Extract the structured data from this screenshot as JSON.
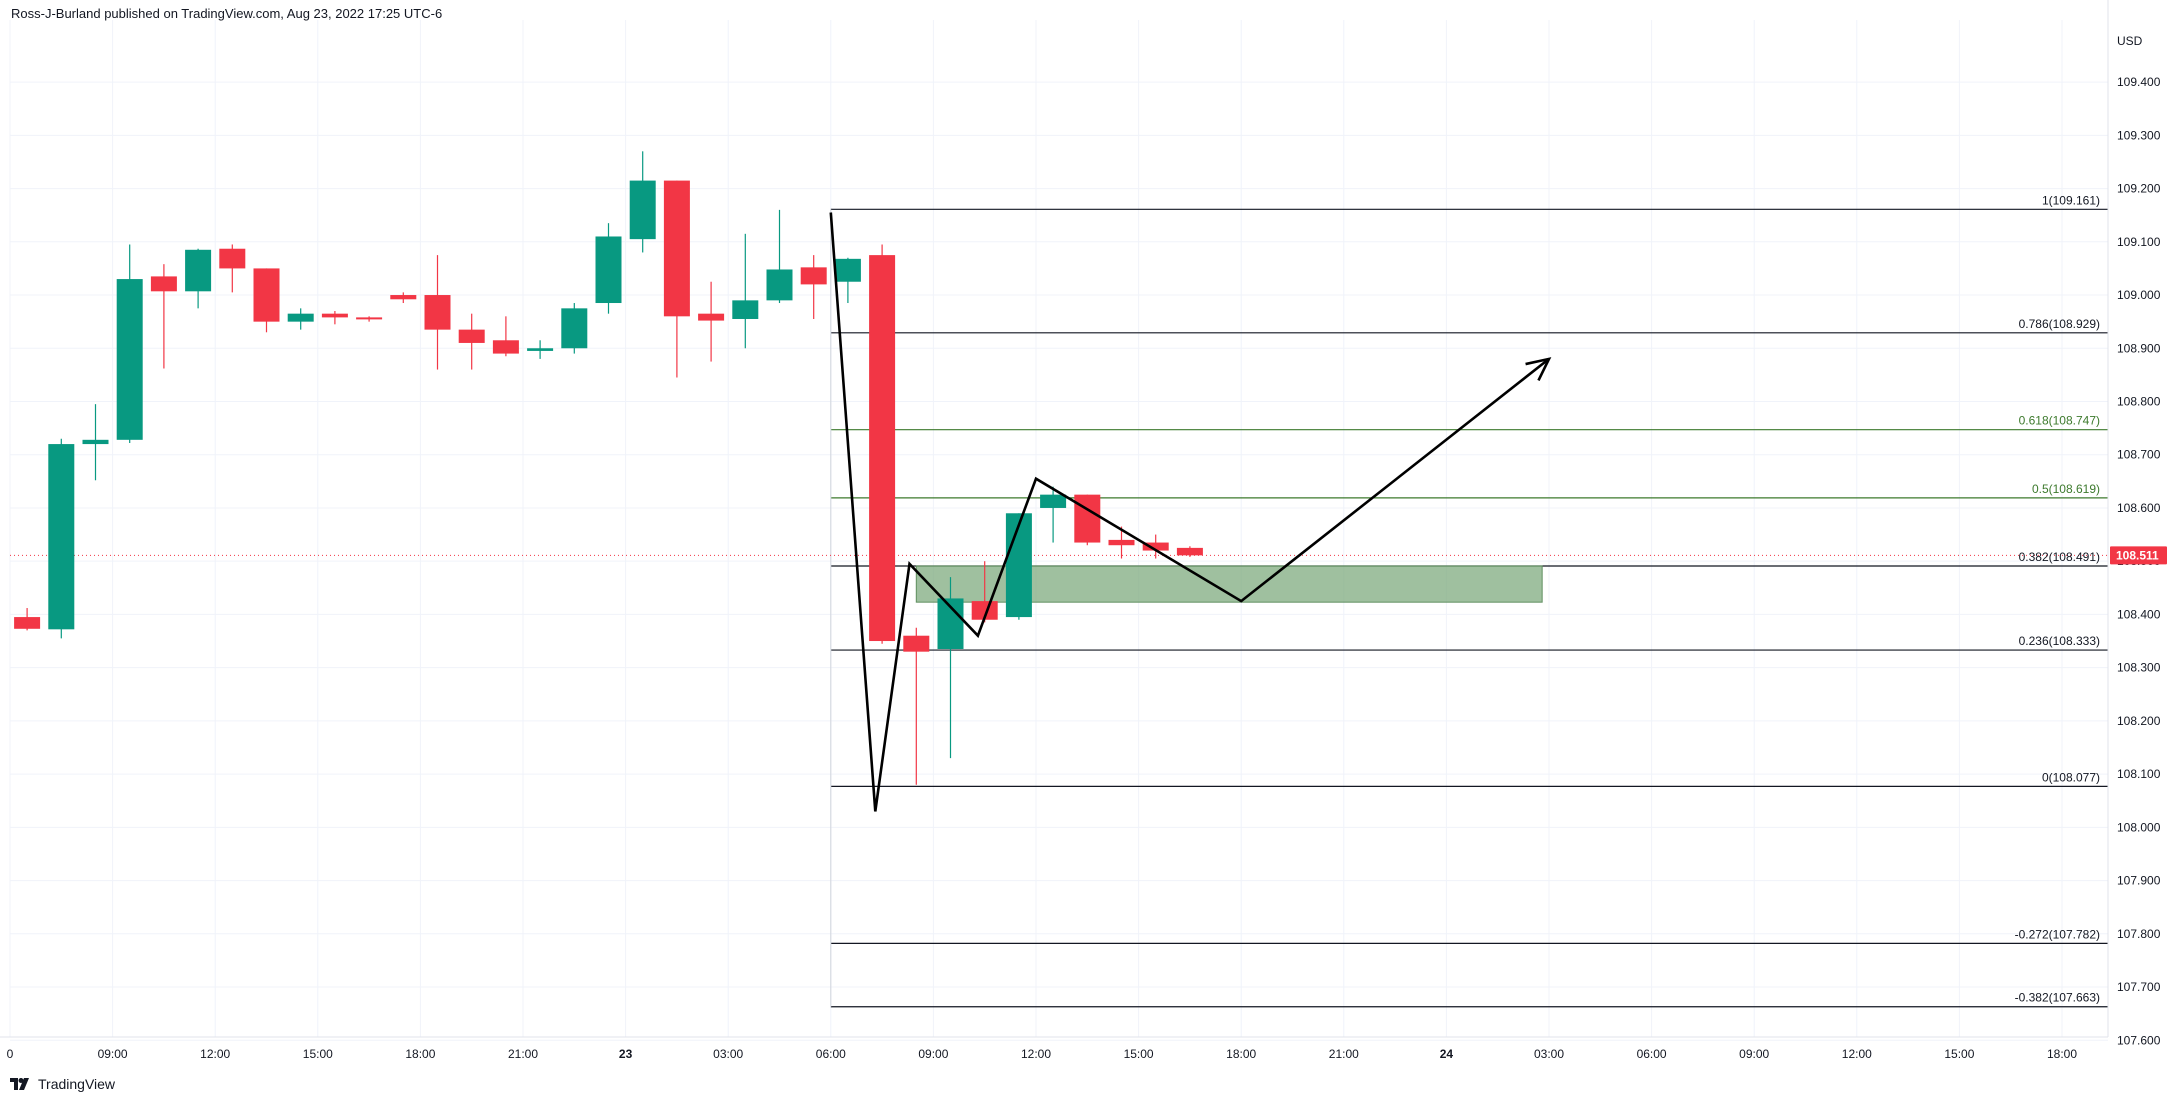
{
  "header": {
    "text": "Ross-J-Burland published on TradingView.com, Aug 23, 2022 17:25 UTC-6"
  },
  "footer": {
    "brand": "TradingView"
  },
  "colors": {
    "up": "#089981",
    "down": "#f23645",
    "grid": "#f0f3fa",
    "fib_black": "#131722",
    "fib_green": "#3d7a2d",
    "zone_fill": "#7aa77a",
    "last_price_bg": "#f23645"
  },
  "chart_data": {
    "type": "candlestick",
    "title": "",
    "y_axis_label": "USD",
    "y_ticks": [
      "109.400",
      "109.300",
      "109.200",
      "109.100",
      "109.000",
      "108.900",
      "108.800",
      "108.700",
      "108.600",
      "108.500",
      "108.400",
      "108.300",
      "108.200",
      "108.100",
      "108.000",
      "107.900",
      "107.800",
      "107.700",
      "107.600"
    ],
    "x_ticks": [
      {
        "label": "0",
        "hour": 6,
        "bold": false
      },
      {
        "label": "09:00",
        "hour": 9,
        "bold": false
      },
      {
        "label": "12:00",
        "hour": 12,
        "bold": false
      },
      {
        "label": "15:00",
        "hour": 15,
        "bold": false
      },
      {
        "label": "18:00",
        "hour": 18,
        "bold": false
      },
      {
        "label": "21:00",
        "hour": 21,
        "bold": false
      },
      {
        "label": "23",
        "hour": 24,
        "bold": true
      },
      {
        "label": "03:00",
        "hour": 27,
        "bold": false
      },
      {
        "label": "06:00",
        "hour": 30,
        "bold": false
      },
      {
        "label": "09:00",
        "hour": 33,
        "bold": false
      },
      {
        "label": "12:00",
        "hour": 36,
        "bold": false
      },
      {
        "label": "15:00",
        "hour": 39,
        "bold": false
      },
      {
        "label": "18:00",
        "hour": 42,
        "bold": false
      },
      {
        "label": "21:00",
        "hour": 45,
        "bold": false
      },
      {
        "label": "24",
        "hour": 48,
        "bold": true
      },
      {
        "label": "03:00",
        "hour": 51,
        "bold": false
      },
      {
        "label": "06:00",
        "hour": 54,
        "bold": false
      },
      {
        "label": "09:00",
        "hour": 57,
        "bold": false
      },
      {
        "label": "12:00",
        "hour": 60,
        "bold": false
      },
      {
        "label": "15:00",
        "hour": 63,
        "bold": false
      },
      {
        "label": "18:00",
        "hour": 66,
        "bold": false
      }
    ],
    "candles": [
      {
        "t": 6,
        "o": 108.395,
        "h": 108.412,
        "l": 108.37,
        "c": 108.373
      },
      {
        "t": 7,
        "o": 108.372,
        "h": 108.73,
        "l": 108.355,
        "c": 108.72
      },
      {
        "t": 8,
        "o": 108.72,
        "h": 108.795,
        "l": 108.652,
        "c": 108.728
      },
      {
        "t": 9,
        "o": 108.728,
        "h": 109.095,
        "l": 108.722,
        "c": 109.03
      },
      {
        "t": 10,
        "o": 109.035,
        "h": 109.058,
        "l": 108.862,
        "c": 109.007
      },
      {
        "t": 11,
        "o": 109.007,
        "h": 109.087,
        "l": 108.975,
        "c": 109.085
      },
      {
        "t": 12,
        "o": 109.087,
        "h": 109.095,
        "l": 109.005,
        "c": 109.05
      },
      {
        "t": 13,
        "o": 109.05,
        "h": 109.05,
        "l": 108.93,
        "c": 108.95
      },
      {
        "t": 14,
        "o": 108.95,
        "h": 108.975,
        "l": 108.935,
        "c": 108.965
      },
      {
        "t": 15,
        "o": 108.965,
        "h": 108.97,
        "l": 108.945,
        "c": 108.958
      },
      {
        "t": 16,
        "o": 108.958,
        "h": 108.96,
        "l": 108.95,
        "c": 108.957
      },
      {
        "t": 17,
        "o": 109.0,
        "h": 109.005,
        "l": 108.985,
        "c": 108.992
      },
      {
        "t": 18,
        "o": 109.0,
        "h": 109.075,
        "l": 108.86,
        "c": 108.935
      },
      {
        "t": 19,
        "o": 108.935,
        "h": 108.965,
        "l": 108.86,
        "c": 108.91
      },
      {
        "t": 20,
        "o": 108.915,
        "h": 108.96,
        "l": 108.885,
        "c": 108.89
      },
      {
        "t": 21,
        "o": 108.895,
        "h": 108.915,
        "l": 108.88,
        "c": 108.9
      },
      {
        "t": 22,
        "o": 108.9,
        "h": 108.985,
        "l": 108.89,
        "c": 108.975
      },
      {
        "t": 23,
        "o": 108.985,
        "h": 109.135,
        "l": 108.965,
        "c": 109.11
      },
      {
        "t": 24,
        "o": 109.105,
        "h": 109.27,
        "l": 109.08,
        "c": 109.215
      },
      {
        "t": 25,
        "o": 109.215,
        "h": 109.215,
        "l": 108.845,
        "c": 108.96
      },
      {
        "t": 26,
        "o": 108.965,
        "h": 109.025,
        "l": 108.875,
        "c": 108.952
      },
      {
        "t": 27,
        "o": 108.955,
        "h": 109.115,
        "l": 108.9,
        "c": 108.99
      },
      {
        "t": 28,
        "o": 108.99,
        "h": 109.16,
        "l": 108.985,
        "c": 109.048
      },
      {
        "t": 29,
        "o": 109.052,
        "h": 109.075,
        "l": 108.955,
        "c": 109.02
      },
      {
        "t": 30,
        "o": 109.025,
        "h": 109.07,
        "l": 108.985,
        "c": 109.068
      },
      {
        "t": 31,
        "o": 109.075,
        "h": 109.095,
        "l": 108.345,
        "c": 108.35
      },
      {
        "t": 32,
        "o": 108.36,
        "h": 108.375,
        "l": 108.08,
        "c": 108.33
      },
      {
        "t": 33,
        "o": 108.335,
        "h": 108.47,
        "l": 108.13,
        "c": 108.43
      },
      {
        "t": 34,
        "o": 108.425,
        "h": 108.5,
        "l": 108.385,
        "c": 108.39
      },
      {
        "t": 35,
        "o": 108.395,
        "h": 108.59,
        "l": 108.39,
        "c": 108.59
      },
      {
        "t": 36,
        "o": 108.6,
        "h": 108.64,
        "l": 108.535,
        "c": 108.625
      },
      {
        "t": 37,
        "o": 108.625,
        "h": 108.625,
        "l": 108.53,
        "c": 108.535
      },
      {
        "t": 38,
        "o": 108.54,
        "h": 108.565,
        "l": 108.505,
        "c": 108.53
      },
      {
        "t": 39,
        "o": 108.535,
        "h": 108.55,
        "l": 108.505,
        "c": 108.52
      },
      {
        "t": 40,
        "o": 108.525,
        "h": 108.528,
        "l": 108.508,
        "c": 108.511
      }
    ],
    "last_price": "108.511",
    "fib_levels": [
      {
        "label": "1(109.161)",
        "value": 109.161,
        "color": "black"
      },
      {
        "label": "0.786(108.929)",
        "value": 108.929,
        "color": "black"
      },
      {
        "label": "0.618(108.747)",
        "value": 108.747,
        "color": "green"
      },
      {
        "label": "0.5(108.619)",
        "value": 108.619,
        "color": "green"
      },
      {
        "label": "0.382(108.491)",
        "value": 108.491,
        "color": "black"
      },
      {
        "label": "0.236(108.333)",
        "value": 108.333,
        "color": "black"
      },
      {
        "label": "0(108.077)",
        "value": 108.077,
        "color": "black"
      },
      {
        "label": "-0.272(107.782)",
        "value": 107.782,
        "color": "black"
      },
      {
        "label": "-0.382(107.663)",
        "value": 107.663,
        "color": "black"
      }
    ],
    "zone": {
      "top": 108.491,
      "bottom": 108.423,
      "t_start": 32.5,
      "t_end": 50.8
    },
    "path": [
      {
        "t": 30.0,
        "v": 109.155
      },
      {
        "t": 31.3,
        "v": 108.03
      },
      {
        "t": 32.3,
        "v": 108.495
      },
      {
        "t": 34.3,
        "v": 108.36
      },
      {
        "t": 36.0,
        "v": 108.655
      },
      {
        "t": 42.0,
        "v": 108.425
      },
      {
        "t": 51.0,
        "v": 108.88
      }
    ]
  }
}
